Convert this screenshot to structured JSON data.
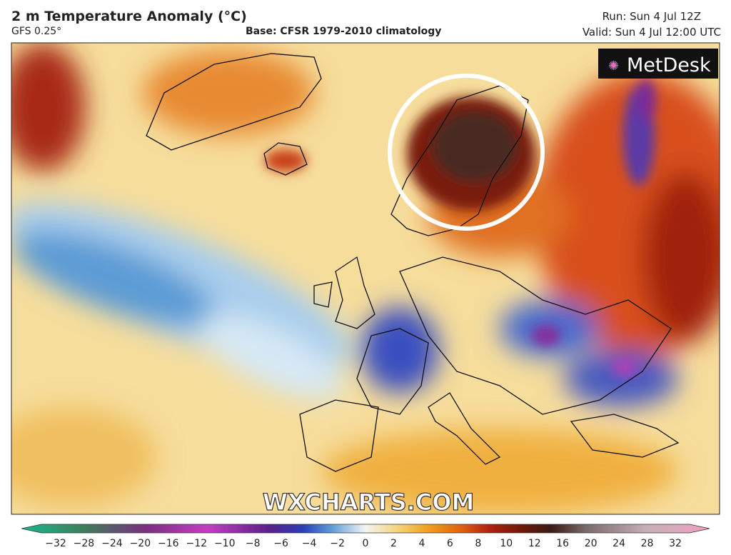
{
  "header": {
    "title": "2 m Temperature Anomaly (°C)",
    "model": "GFS 0.25°",
    "base": "Base: CFSR 1979-2010 climatology",
    "run": "Run: Sun 4 Jul 12Z",
    "valid": "Valid: Sun 4 Jul 12:00 UTC"
  },
  "logo": "MetDesk",
  "watermark": "WXCHARTS.COM",
  "colorbar": {
    "labels": [
      "−32",
      "−28",
      "−24",
      "−20",
      "−16",
      "−12",
      "−10",
      "−8",
      "−6",
      "−4",
      "−2",
      "0",
      "2",
      "4",
      "6",
      "8",
      "10",
      "12",
      "16",
      "20",
      "24",
      "28",
      "32"
    ]
  }
}
